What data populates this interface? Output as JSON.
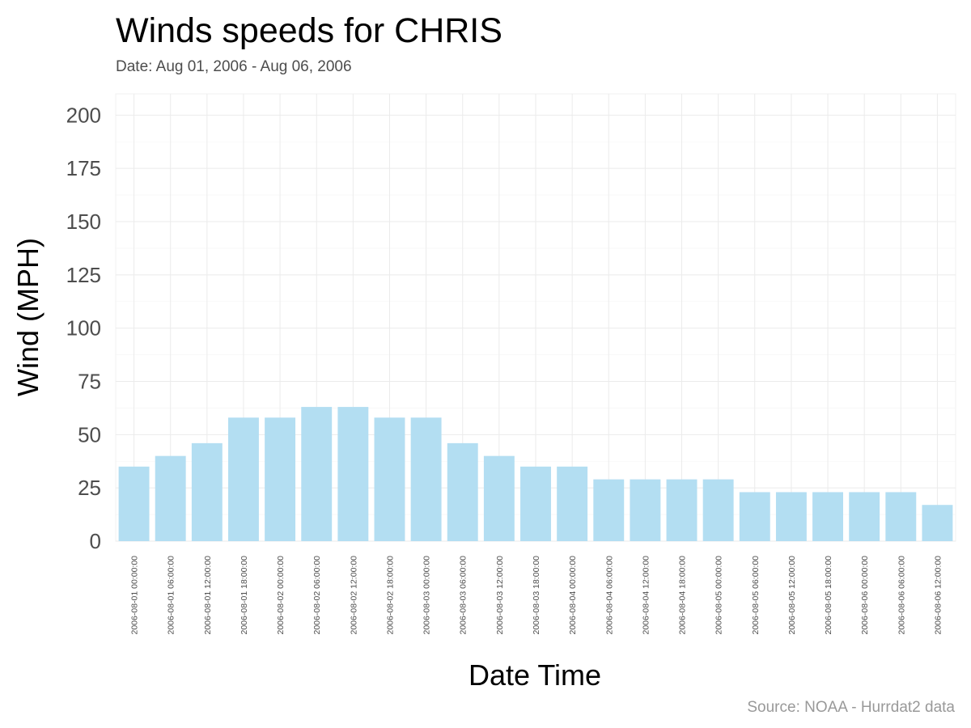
{
  "chart_data": {
    "type": "bar",
    "title": "Winds speeds for CHRIS",
    "subtitle": "Date:  Aug 01, 2006 - Aug 06, 2006",
    "xlabel": "Date Time",
    "ylabel": "Wind (MPH)",
    "caption": "Source: NOAA - Hurrdat2 data",
    "ylim": [
      0,
      210
    ],
    "yticks": [
      "0",
      "25",
      "50",
      "75",
      "100",
      "125",
      "150",
      "175",
      "200"
    ],
    "grid": true,
    "bar_color": "#b3def2",
    "categories": [
      "2006-08-01 00:00:00",
      "2006-08-01 06:00:00",
      "2006-08-01 12:00:00",
      "2006-08-01 18:00:00",
      "2006-08-02 00:00:00",
      "2006-08-02 06:00:00",
      "2006-08-02 12:00:00",
      "2006-08-02 18:00:00",
      "2006-08-03 00:00:00",
      "2006-08-03 06:00:00",
      "2006-08-03 12:00:00",
      "2006-08-03 18:00:00",
      "2006-08-04 00:00:00",
      "2006-08-04 06:00:00",
      "2006-08-04 12:00:00",
      "2006-08-04 18:00:00",
      "2006-08-05 00:00:00",
      "2006-08-05 06:00:00",
      "2006-08-05 12:00:00",
      "2006-08-05 18:00:00",
      "2006-08-06 00:00:00",
      "2006-08-06 06:00:00",
      "2006-08-06 12:00:00"
    ],
    "values": [
      35,
      40,
      46,
      58,
      58,
      63,
      63,
      58,
      58,
      46,
      40,
      35,
      35,
      29,
      29,
      29,
      29,
      23,
      23,
      23,
      23,
      23,
      17
    ]
  }
}
